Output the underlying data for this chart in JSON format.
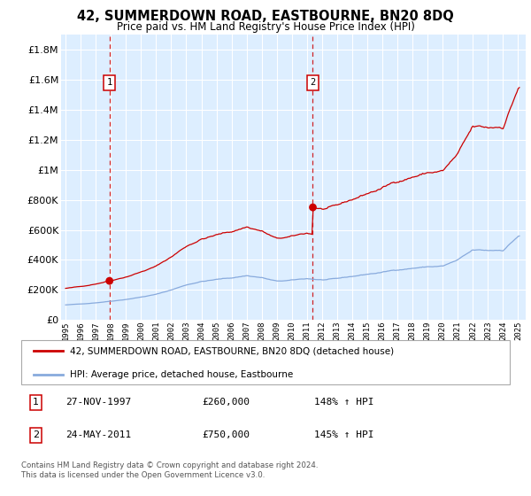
{
  "title": "42, SUMMERDOWN ROAD, EASTBOURNE, BN20 8DQ",
  "subtitle": "Price paid vs. HM Land Registry's House Price Index (HPI)",
  "sale1_year": 1997.91,
  "sale1_price": 260000,
  "sale2_year": 2011.39,
  "sale2_price": 750000,
  "legend_line1": "42, SUMMERDOWN ROAD, EASTBOURNE, BN20 8DQ (detached house)",
  "legend_line2": "HPI: Average price, detached house, Eastbourne",
  "table_row1_num": "1",
  "table_row1_date": "27-NOV-1997",
  "table_row1_price": "£260,000",
  "table_row1_hpi": "148% ↑ HPI",
  "table_row2_num": "2",
  "table_row2_date": "24-MAY-2011",
  "table_row2_price": "£750,000",
  "table_row2_hpi": "145% ↑ HPI",
  "footnote1": "Contains HM Land Registry data © Crown copyright and database right 2024.",
  "footnote2": "This data is licensed under the Open Government Licence v3.0.",
  "ylim_max": 1900000,
  "bg_color": "#ddeeff",
  "red": "#cc0000",
  "blue": "#88aadd"
}
